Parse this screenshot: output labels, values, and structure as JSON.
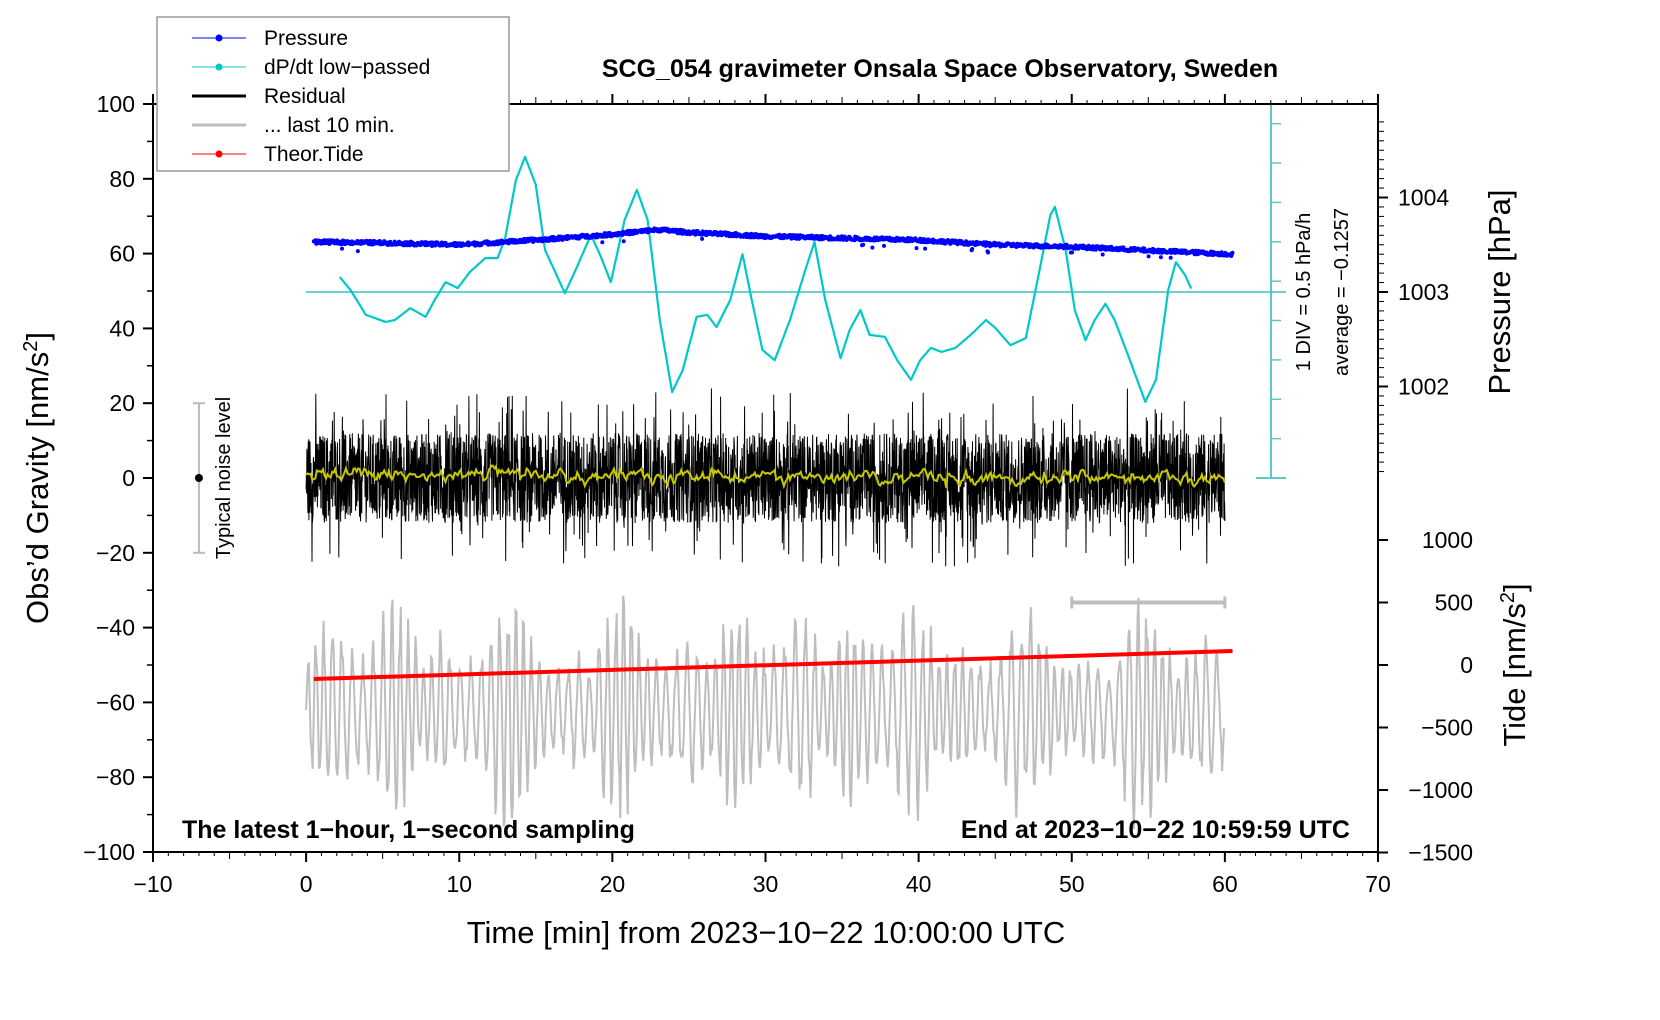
{
  "chart_data": {
    "type": "line",
    "title": "SCG_054 gravimeter Onsala Space Observatory, Sweden",
    "xlabel": "Time [min] from 2023−10−22 10:00:00 UTC",
    "ylabel": "Obs’d Gravity [nm/s",
    "ylabel_sup": "2",
    "ylabel_end": "]",
    "y2label": "Pressure [hPa]",
    "y3label": "Tide [nm/s",
    "y3label_sup": "2",
    "y3label_end": "]",
    "xlim": [
      -10,
      70
    ],
    "ylim": [
      -100,
      100
    ],
    "pressure_lim": [
      1001.0,
      1004.96
    ],
    "tide_lim": [
      -1500,
      1500
    ],
    "x_ticks": [
      "−10",
      "0",
      "10",
      "20",
      "30",
      "40",
      "50",
      "60",
      "70"
    ],
    "y_ticks": [
      "100",
      "80",
      "60",
      "40",
      "20",
      "0",
      "−20",
      "−40",
      "−60",
      "−80",
      "−100"
    ],
    "pressure_ticks": [
      "1004",
      "1003",
      "1002"
    ],
    "tide_ticks": [
      "1000",
      "500",
      "0",
      "−500",
      "−1000",
      "−1500"
    ],
    "grid": false,
    "legend": {
      "placement": "top-left",
      "entries": [
        {
          "label": "Pressure",
          "color": "#0000ff",
          "marker": true
        },
        {
          "label": "dP/dt low−passed",
          "color": "#00c8c8",
          "marker": true
        },
        {
          "label": "Residual",
          "color": "#000000",
          "marker": false
        },
        {
          "label": "... last 10 min.",
          "color": "#bebebe",
          "marker": false
        },
        {
          "label": "Theor.Tide",
          "color": "#ff0000",
          "marker": true
        }
      ]
    },
    "annotations": {
      "bottom_left": "The latest 1−hour, 1−second sampling",
      "bottom_right": "End at 2023−10−22 10:59:59 UTC",
      "div_scale": "1 DIV = 0.5 hPa/h",
      "average": "average = −0.1257",
      "noise_label": "Typical noise level"
    },
    "noise_level": {
      "x": -7,
      "range": [
        -20,
        20
      ]
    },
    "last10_bar": {
      "x": [
        50,
        60
      ],
      "tide": 500
    },
    "pressure": {
      "unit": "hPa",
      "x": [
        0.5,
        5,
        10,
        15,
        20,
        23,
        25,
        30,
        35,
        40,
        45,
        50,
        55,
        60.5
      ],
      "y": [
        1003.53,
        1003.52,
        1003.5,
        1003.55,
        1003.61,
        1003.66,
        1003.63,
        1003.59,
        1003.57,
        1003.55,
        1003.5,
        1003.48,
        1003.44,
        1003.4
      ]
    },
    "dpdt": {
      "unit": "DIV (0.5 hPa/h) relative to average",
      "x": [
        2.2,
        2.9,
        3.9,
        5.2,
        5.8,
        6.8,
        7.8,
        8.4,
        9.1,
        9.9,
        10.7,
        11.7,
        12.5,
        13.0,
        13.7,
        14.3,
        15.0,
        15.6,
        16.9,
        17.6,
        18.6,
        19.2,
        19.9,
        20.8,
        21.6,
        22.3,
        23.1,
        23.9,
        24.6,
        25.5,
        26.2,
        26.8,
        27.7,
        28.5,
        29.1,
        29.8,
        30.6,
        31.6,
        32.6,
        33.2,
        33.9,
        34.9,
        35.5,
        36.2,
        36.8,
        37.8,
        38.6,
        39.5,
        40.1,
        40.8,
        41.5,
        42.4,
        43.4,
        44.4,
        45.0,
        46.0,
        47.0,
        47.9,
        48.6,
        48.9,
        49.6,
        50.2,
        50.9,
        51.5,
        52.2,
        52.8,
        53.8,
        54.8,
        55.5,
        56.3,
        56.8,
        57.4,
        57.9
      ],
      "y": [
        0.38,
        0.05,
        -0.58,
        -0.76,
        -0.71,
        -0.41,
        -0.63,
        -0.2,
        0.25,
        0.1,
        0.51,
        0.86,
        0.86,
        1.37,
        2.84,
        3.43,
        2.72,
        1.07,
        -0.03,
        0.56,
        1.45,
        0.94,
        0.25,
        1.83,
        2.59,
        1.83,
        -0.71,
        -2.54,
        -1.98,
        -0.63,
        -0.58,
        -0.89,
        -0.2,
        0.96,
        -0.2,
        -1.47,
        -1.73,
        -0.71,
        0.56,
        1.27,
        -0.2,
        -1.68,
        -0.96,
        -0.46,
        -1.09,
        -1.14,
        -1.73,
        -2.23,
        -1.73,
        -1.42,
        -1.52,
        -1.42,
        -1.09,
        -0.71,
        -0.91,
        -1.35,
        -1.17,
        0.56,
        1.95,
        2.16,
        1.07,
        -0.46,
        -1.22,
        -0.71,
        -0.3,
        -0.71,
        -1.73,
        -2.79,
        -2.23,
        0.05,
        0.76,
        0.43,
        0.0
      ]
    },
    "residual": {
      "x_range": [
        0,
        60
      ],
      "typical_amplitude_nm_s2": 15,
      "max_abs_nm_s2": 25,
      "smoothed_color": "#c8c800"
    },
    "last10": {
      "x_range": [
        0,
        60
      ],
      "center_nm_s2": -62,
      "amplitude_nm_s2": 22
    },
    "tide": {
      "x": [
        0.5,
        60.5
      ],
      "y": [
        -112,
        112
      ]
    }
  }
}
